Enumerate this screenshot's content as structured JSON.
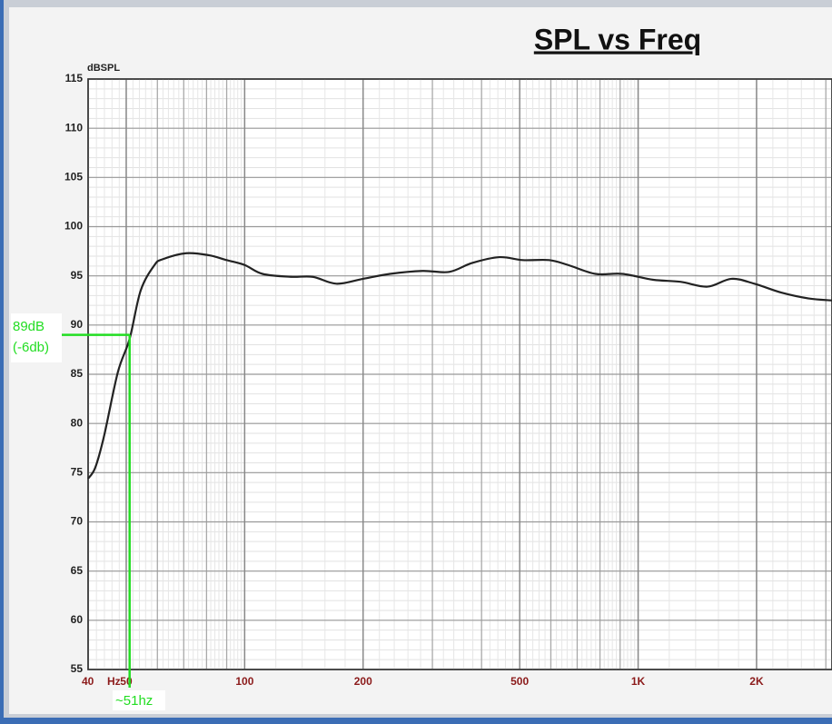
{
  "chart_data": {
    "type": "line",
    "title": "SPL vs Freq",
    "y_label": "dBSPL",
    "x_label": "Hz",
    "log_x": true,
    "grid": true,
    "xlim": [
      40,
      3110
    ],
    "ylim": [
      55,
      115
    ],
    "xticks": [
      40,
      50,
      100,
      200,
      500,
      {
        "value": 1000,
        "label": "1K"
      },
      {
        "value": 2000,
        "label": "2K"
      }
    ],
    "yticks": [
      55,
      60,
      65,
      70,
      75,
      80,
      85,
      90,
      95,
      100,
      105,
      110,
      115
    ],
    "series": [
      {
        "color": "#222222",
        "x": [
          40,
          41.7,
          43.9,
          47.6,
          51,
          54.4,
          59,
          62,
          71,
          81,
          90,
          100,
          111,
          131,
          149,
          171,
          200,
          234,
          283,
          331,
          378,
          444,
          509,
          594,
          664,
          779,
          912,
          1093,
          1281,
          1500,
          1726,
          1975,
          2311,
          2715,
          3110
        ],
        "values": [
          74.4,
          75.5,
          78.7,
          85.2,
          88.6,
          93.5,
          96.1,
          96.7,
          97.3,
          97.1,
          96.6,
          96.1,
          95.2,
          94.9,
          94.9,
          94.2,
          94.7,
          95.2,
          95.5,
          95.4,
          96.3,
          96.9,
          96.6,
          96.6,
          96.1,
          95.2,
          95.2,
          94.6,
          94.4,
          93.9,
          94.7,
          94.2,
          93.3,
          92.7,
          92.5
        ]
      }
    ],
    "annotations": [
      {
        "text": [
          "89dB",
          "(-6db)"
        ],
        "y": 89,
        "color": "#22dd22"
      },
      {
        "text": "~51hz",
        "x": 51,
        "color": "#22dd22"
      }
    ]
  }
}
